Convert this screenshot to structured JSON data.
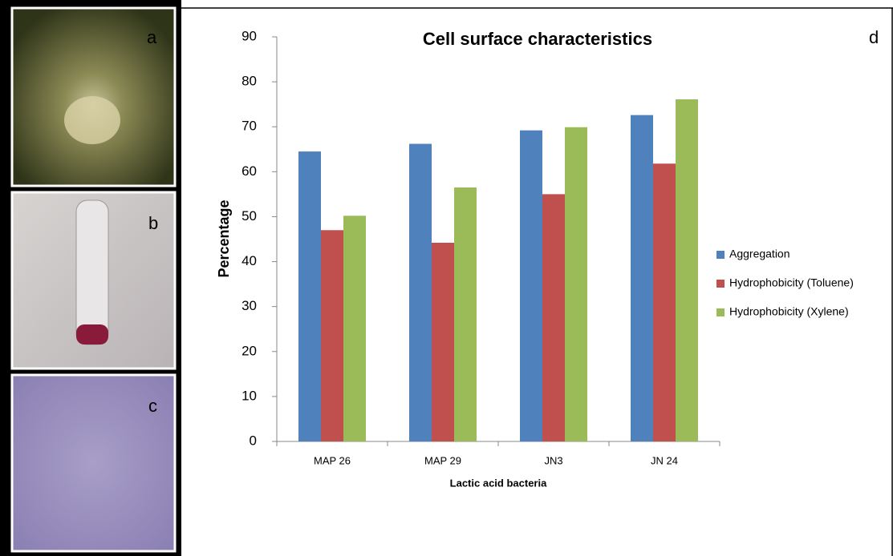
{
  "panel_labels": [
    "a",
    "b",
    "c"
  ],
  "chart_data": {
    "type": "bar",
    "title": "Cell surface characteristics",
    "panel_label": "d",
    "x_label": "Lactic acid bacteria",
    "y_label": "Percentage",
    "categories": [
      "MAP 26",
      "MAP 29",
      "JN3",
      "JN 24"
    ],
    "series": [
      {
        "name": "Aggregation",
        "color": "#4f81bd",
        "values": [
          64.5,
          66.2,
          69.2,
          72.6
        ]
      },
      {
        "name": "Hydrophobicity (Toluene)",
        "color": "#c0504d",
        "values": [
          47,
          44.2,
          55,
          61.8
        ]
      },
      {
        "name": "Hydrophobicity (Xylene)",
        "color": "#9bbb59",
        "values": [
          50.2,
          56.5,
          69.9,
          76.1
        ]
      }
    ],
    "ylim": [
      0,
      90
    ],
    "yticks": [
      0,
      10,
      20,
      30,
      40,
      50,
      60,
      70,
      80,
      90
    ],
    "grid": false,
    "legend": "right"
  }
}
